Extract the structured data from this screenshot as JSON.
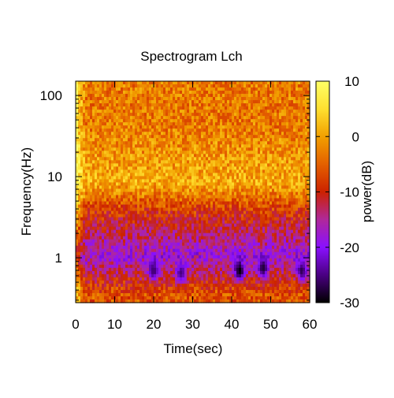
{
  "chart_data": {
    "type": "heatmap",
    "title": "Spectrogram Lch",
    "xlabel": "Time(sec)",
    "ylabel": "Frequency(Hz)",
    "colorbar_label": "power(dB)",
    "x_range": [
      0,
      60
    ],
    "y_range": [
      0.28,
      150
    ],
    "y_scale": "log",
    "color_range": [
      -30,
      10
    ],
    "x_ticks": [
      0,
      10,
      20,
      30,
      40,
      50,
      60
    ],
    "x_tick_labels": [
      "0",
      "10",
      "20",
      "30",
      "40",
      "50",
      "60"
    ],
    "y_ticks": [
      1,
      10,
      100
    ],
    "y_tick_labels": [
      "1",
      "10",
      "100"
    ],
    "colorbar_ticks": [
      10,
      0,
      -10,
      -20,
      -30
    ],
    "colorbar_tick_labels": [
      "10",
      "0",
      "-10",
      "-20",
      "-30"
    ],
    "colormap": [
      "#000000",
      "#4a0082",
      "#8a10ff",
      "#b0289a",
      "#cc2200",
      "#e46000",
      "#f2a000",
      "#ffe030",
      "#ffff66"
    ],
    "frequency_bands": [
      {
        "freq_range_hz": [
          0.28,
          0.45
        ],
        "typical_db": -6
      },
      {
        "freq_range_hz": [
          0.45,
          2.5
        ],
        "typical_db": -18
      },
      {
        "freq_range_hz": [
          2.5,
          6
        ],
        "typical_db": -8
      },
      {
        "freq_range_hz": [
          6,
          12
        ],
        "typical_db": 1
      },
      {
        "freq_range_hz": [
          12,
          150
        ],
        "typical_db": -3
      }
    ],
    "low_power_minima": [
      {
        "time_sec": 42,
        "freq_hz": 0.7,
        "db": -30
      },
      {
        "time_sec": 48,
        "freq_hz": 0.75,
        "db": -28
      },
      {
        "time_sec": 58,
        "freq_hz": 0.7,
        "db": -27
      },
      {
        "time_sec": 20,
        "freq_hz": 0.7,
        "db": -26
      },
      {
        "time_sec": 27,
        "freq_hz": 0.65,
        "db": -25
      }
    ],
    "grid": false,
    "legend": "colorbar-right"
  }
}
